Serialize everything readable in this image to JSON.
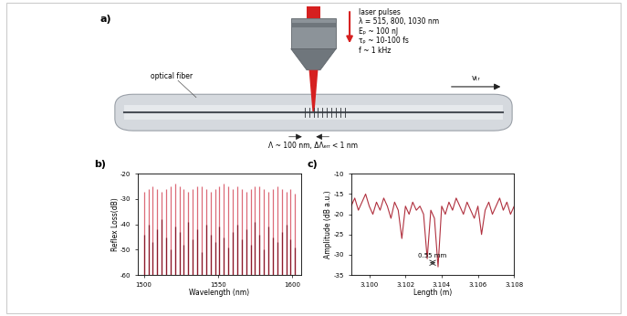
{
  "diagram": {
    "panel_label": "a)",
    "laser_title": "laser pulses",
    "laser_params": [
      "λ = 515, 800, 1030 nm",
      "Eₚ ~ 100 nJ",
      "τₚ ~ 10-100 fs",
      "f ~ 1 kHz"
    ],
    "fiber_label": "optical fiber",
    "velocity_label": "vₜᵣ",
    "grating_label": "Λ ~ 100 nm, ΔΛₑᵣᵣ < 1 nm"
  },
  "chart_data": [
    {
      "type": "stem",
      "panel_label": "b)",
      "x_label": "Wavelength (nm)",
      "y_label": "Reflex Loss(dB)",
      "x": [
        1500,
        1503,
        1506,
        1509,
        1512,
        1515,
        1518,
        1521,
        1524,
        1527,
        1530,
        1533,
        1536,
        1539,
        1542,
        1545,
        1548,
        1551,
        1554,
        1557,
        1560,
        1563,
        1566,
        1569,
        1572,
        1575,
        1578,
        1581,
        1584,
        1587,
        1590,
        1593,
        1596,
        1599,
        1602
      ],
      "series": [
        {
          "color": "#dc6b78",
          "values": [
            -27,
            -26,
            -25,
            -26,
            -27,
            -26,
            -25,
            -24,
            -25,
            -26,
            -27,
            -26,
            -25,
            -25,
            -26,
            -27,
            -26,
            -25,
            -24,
            -25,
            -26,
            -25,
            -26,
            -27,
            -26,
            -25,
            -25,
            -26,
            -27,
            -26,
            -25,
            -26,
            -27,
            -26,
            -28
          ]
        },
        {
          "color": "#8b1a2b",
          "values": [
            -44,
            -40,
            -47,
            -42,
            -38,
            -45,
            -50,
            -41,
            -43,
            -48,
            -39,
            -46,
            -42,
            -51,
            -40,
            -44,
            -47,
            -41,
            -45,
            -49,
            -43,
            -40,
            -46,
            -42,
            -48,
            -39,
            -44,
            -50,
            -41,
            -45,
            -47,
            -43,
            -40,
            -46,
            -49
          ]
        }
      ],
      "xlim": [
        1496,
        1606
      ],
      "xticks": [
        1500,
        1550,
        1600
      ],
      "ylim": [
        -60,
        -20
      ],
      "yticks": [
        -60,
        -50,
        -40,
        -30,
        -20
      ],
      "grid": false
    },
    {
      "type": "line",
      "panel_label": "c)",
      "x_label": "Length (m)",
      "y_label": "Amplitude (dB a.u.)",
      "x": [
        3.099,
        3.0992,
        3.0994,
        3.0996,
        3.0998,
        3.1,
        3.1002,
        3.1004,
        3.1006,
        3.1008,
        3.101,
        3.1012,
        3.1014,
        3.1016,
        3.1018,
        3.102,
        3.1022,
        3.1024,
        3.1026,
        3.1028,
        3.103,
        3.1032,
        3.1034,
        3.1036,
        3.1038,
        3.104,
        3.1042,
        3.1044,
        3.1046,
        3.1048,
        3.105,
        3.1052,
        3.1054,
        3.1056,
        3.1058,
        3.106,
        3.1062,
        3.1064,
        3.1066,
        3.1068,
        3.107,
        3.1072,
        3.1074,
        3.1076,
        3.1078,
        3.108
      ],
      "series": [
        {
          "color": "#b0303e",
          "values": [
            -18,
            -16,
            -19,
            -17,
            -15,
            -18,
            -20,
            -17,
            -19,
            -16,
            -18,
            -21,
            -17,
            -19,
            -26,
            -18,
            -20,
            -17,
            -19,
            -18,
            -20,
            -31,
            -19,
            -21,
            -33,
            -18,
            -20,
            -17,
            -19,
            -16,
            -18,
            -20,
            -17,
            -19,
            -21,
            -18,
            -25,
            -19,
            -17,
            -20,
            -18,
            -16,
            -19,
            -17,
            -20,
            -18
          ]
        }
      ],
      "annotations": [
        {
          "text": "0.55 mm"
        }
      ],
      "xlim": [
        3.099,
        3.108
      ],
      "xticks": [
        {
          "value": 3.1,
          "label": "3.100"
        },
        3.102,
        3.104,
        3.106,
        3.108
      ],
      "ylim": [
        -35,
        -10
      ],
      "yticks": [
        -35,
        -30,
        -25,
        -20,
        -15,
        -10
      ],
      "grid": false
    }
  ]
}
